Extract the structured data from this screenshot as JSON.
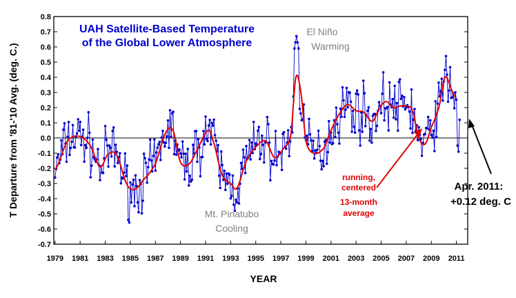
{
  "chart_data": {
    "type": "line",
    "title_lines": [
      "UAH Satellite-Based Temperature",
      "of the Global Lower Atmosphere"
    ],
    "xlabel": "YEAR",
    "ylabel": "T Departure from '81-'10 Avg. (deg. C.)",
    "xlim": [
      1978.9,
      2011.9
    ],
    "ylim": [
      -0.7,
      0.8
    ],
    "x_ticks": [
      "1979",
      "1981",
      "1983",
      "1985",
      "1987",
      "1989",
      "1991",
      "1993",
      "1995",
      "1997",
      "1999",
      "2001",
      "2003",
      "2005",
      "2007",
      "2009",
      "2011"
    ],
    "y_ticks": [
      "0.8",
      "0.7",
      "0.6",
      "0.5",
      "0.4",
      "0.3",
      "0.2",
      "0.1",
      "0.0",
      "-0.1",
      "-0.2",
      "-0.3",
      "-0.4",
      "-0.5",
      "-0.6",
      "-0.7"
    ],
    "grid": false,
    "colors": {
      "monthly": "#0000cc",
      "running": "#e00000",
      "title": "#0000cc",
      "annotation_grey": "#808080",
      "annotation_red": "#e00000"
    },
    "smooth_anchors": {
      "x": [
        1979.0,
        1980.0,
        1981.0,
        1981.8,
        1982.6,
        1983.2,
        1983.9,
        1984.7,
        1985.3,
        1986.0,
        1987.0,
        1987.8,
        1988.4,
        1989.0,
        1989.7,
        1990.5,
        1991.2,
        1991.6,
        1992.3,
        1993.0,
        1993.5,
        1994.2,
        1995.0,
        1995.8,
        1996.5,
        1997.2,
        1997.8,
        1998.2,
        1998.6,
        1999.0,
        1999.6,
        2000.4,
        2001.0,
        2001.6,
        2002.3,
        2003.0,
        2003.6,
        2004.3,
        2004.9,
        2005.4,
        2006.0,
        2006.5,
        2007.0,
        2007.5,
        2008.0,
        2008.5,
        2009.0,
        2009.6,
        2010.1,
        2010.6,
        2011.0
      ],
      "y": [
        -0.21,
        -0.02,
        0.01,
        -0.05,
        -0.19,
        -0.11,
        -0.11,
        -0.3,
        -0.34,
        -0.28,
        -0.17,
        0.03,
        0.05,
        -0.16,
        -0.17,
        -0.05,
        0.05,
        -0.02,
        -0.24,
        -0.3,
        -0.33,
        -0.16,
        -0.06,
        -0.02,
        -0.13,
        -0.07,
        0.02,
        0.4,
        0.3,
        -0.02,
        -0.1,
        -0.07,
        0.05,
        0.15,
        0.22,
        0.18,
        0.17,
        0.11,
        0.2,
        0.24,
        0.2,
        0.21,
        0.21,
        0.18,
        0.0,
        -0.04,
        0.07,
        0.2,
        0.4,
        0.32,
        0.26
      ]
    },
    "noise_amplitude": 0.13,
    "noise_seed": 7,
    "monthly_start": 1979.0,
    "monthly_end": 2011.25,
    "monthly_ending_values": [
      -0.05,
      -0.09,
      0.12
    ],
    "annotations": {
      "el_nino": [
        "El Niño",
        "Warming"
      ],
      "pinatubo": [
        "Mt. Pinatubo",
        "Cooling"
      ],
      "running": [
        "running,",
        "centered",
        "13-month",
        "average"
      ],
      "latest": [
        "Apr. 2011:",
        "+0.12 deg. C"
      ]
    }
  }
}
